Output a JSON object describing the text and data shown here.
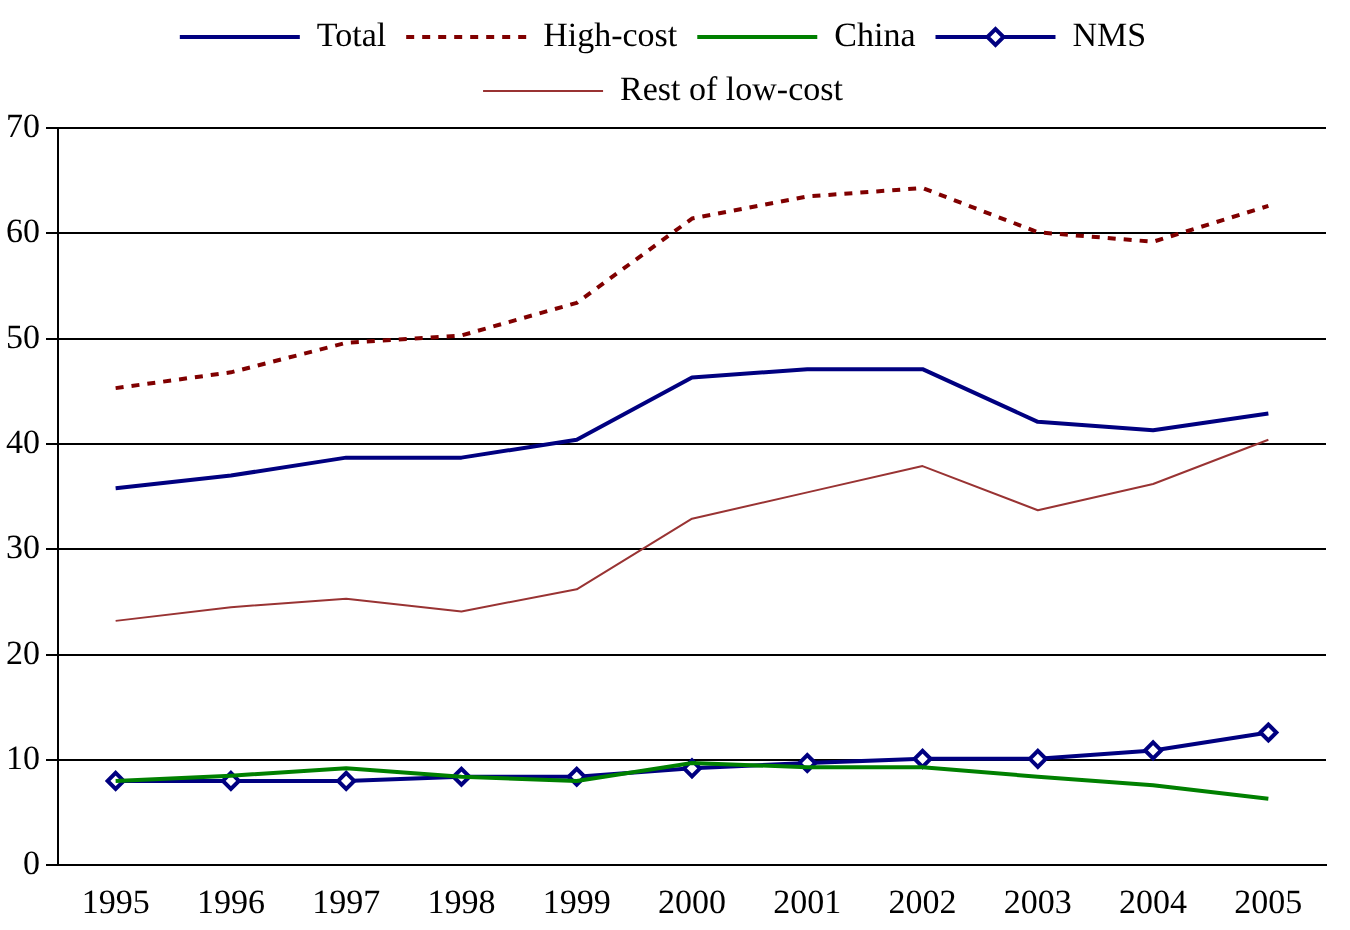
{
  "chart_data": {
    "type": "line",
    "categories": [
      "1995",
      "1996",
      "1997",
      "1998",
      "1999",
      "2000",
      "2001",
      "2002",
      "2003",
      "2004",
      "2005"
    ],
    "series": [
      {
        "name": "Total",
        "color": "#000080",
        "values": [
          35.8,
          37,
          38.7,
          38.7,
          40.4,
          46.3,
          47.1,
          47.1,
          42.1,
          41.3,
          42.9
        ],
        "line_style": "solid",
        "marker": "none"
      },
      {
        "name": "High-cost",
        "color": "#800000",
        "values": [
          45.3,
          46.8,
          49.6,
          50.3,
          53.4,
          61.4,
          63.5,
          64.3,
          60.1,
          59.2,
          62.6
        ],
        "line_style": "dashed",
        "marker": "none"
      },
      {
        "name": "China",
        "color": "#008000",
        "values": [
          8,
          8.5,
          9.2,
          8.4,
          8,
          9.7,
          9.3,
          9.3,
          8.4,
          7.6,
          6.3
        ],
        "line_style": "solid",
        "marker": "none"
      },
      {
        "name": "NMS",
        "color": "#000080",
        "values": [
          8,
          8,
          8,
          8.4,
          8.4,
          9.2,
          9.7,
          10.1,
          10.1,
          10.9,
          12.6
        ],
        "line_style": "solid",
        "marker": "diamond"
      },
      {
        "name": "Rest of low-cost",
        "color": "#993333",
        "values": [
          23.2,
          24.5,
          25.3,
          24.1,
          26.2,
          32.9,
          35.4,
          37.9,
          33.7,
          36.2,
          40.4
        ],
        "line_style": "solid",
        "marker": "none"
      }
    ],
    "ylim": [
      0,
      70
    ],
    "yticks": [
      0,
      10,
      20,
      30,
      40,
      50,
      60,
      70
    ],
    "grid": "y",
    "legend": "top"
  }
}
